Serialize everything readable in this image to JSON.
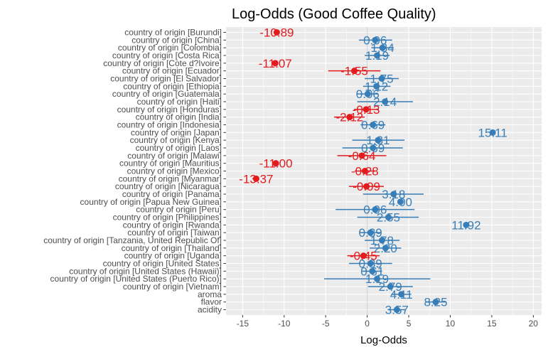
{
  "chart_data": {
    "type": "forest",
    "title": "Log-Odds (Good Coffee Quality)",
    "xlabel": "Log-Odds",
    "xlim": [
      -17,
      21
    ],
    "xticks": [
      -15,
      -10,
      -5,
      0,
      5,
      10,
      15,
      20
    ],
    "grid": true,
    "legend": "none",
    "colors": {
      "positive": "#377eb8",
      "negative": "#e41a1c",
      "panel": "#ebebeb",
      "grid": "#ffffff"
    },
    "terms": [
      {
        "label": "country of origin [Burundi]",
        "estimate": -10.89,
        "lo": null,
        "hi": null,
        "text": "-10.89"
      },
      {
        "label": "country of origin [China]",
        "estimate": 0.96,
        "lo": -1.0,
        "hi": 3.0,
        "text": "0.96"
      },
      {
        "label": "country of origin [Colombia]",
        "estimate": 1.84,
        "lo": 0.5,
        "hi": 3.2,
        "text": "1.84"
      },
      {
        "label": "country of origin [Costa Rica]",
        "estimate": 1.19,
        "lo": -0.3,
        "hi": 2.7,
        "text": "1.19"
      },
      {
        "label": "country of origin [Cote d?Ivoire]",
        "estimate": -11.07,
        "lo": null,
        "hi": null,
        "text": "-11.07"
      },
      {
        "label": "country of origin [Ecuador]",
        "estimate": -1.55,
        "lo": -4.7,
        "hi": 1.6,
        "text": "-1.55"
      },
      {
        "label": "country of origin [El Salvador]",
        "estimate": 1.75,
        "lo": -0.3,
        "hi": 3.8,
        "text": "1.75"
      },
      {
        "label": "country of origin [Ethiopia]",
        "estimate": 1.12,
        "lo": -0.5,
        "hi": 2.8,
        "text": "1.12"
      },
      {
        "label": "country of origin [Guatemala]",
        "estimate": 0.06,
        "lo": -1.2,
        "hi": 1.3,
        "text": "0.06"
      },
      {
        "label": "country of origin [Haiti]",
        "estimate": 2.14,
        "lo": -1.2,
        "hi": 5.5,
        "text": "2.14"
      },
      {
        "label": "country of origin [Honduras]",
        "estimate": -0.13,
        "lo": -1.6,
        "hi": 1.4,
        "text": "-0.13"
      },
      {
        "label": "country of origin [India]",
        "estimate": -2.12,
        "lo": -4.0,
        "hi": -0.3,
        "text": "-2.12"
      },
      {
        "label": "country of origin [Indonesia]",
        "estimate": 0.69,
        "lo": -0.8,
        "hi": 2.2,
        "text": "0.69"
      },
      {
        "label": "country of origin [Japan]",
        "estimate": 15.11,
        "lo": null,
        "hi": null,
        "text": "15.11"
      },
      {
        "label": "country of origin [Kenya]",
        "estimate": 1.31,
        "lo": -1.8,
        "hi": 4.5,
        "text": "1.31"
      },
      {
        "label": "country of origin [Laos]",
        "estimate": 0.69,
        "lo": -3.0,
        "hi": 4.3,
        "text": "0.69"
      },
      {
        "label": "country of origin [Malawi]",
        "estimate": -0.64,
        "lo": -3.6,
        "hi": 2.3,
        "text": "-0.64"
      },
      {
        "label": "country of origin [Mauritius]",
        "estimate": -11.0,
        "lo": null,
        "hi": null,
        "text": "-11.00"
      },
      {
        "label": "country of origin [Mexico]",
        "estimate": -0.28,
        "lo": -1.5,
        "hi": 0.9,
        "text": "-0.28"
      },
      {
        "label": "country of origin [Myanmar]",
        "estimate": -13.37,
        "lo": null,
        "hi": null,
        "text": "-13.37"
      },
      {
        "label": "country of origin [Nicaragua]",
        "estimate": -0.09,
        "lo": -2.2,
        "hi": 2.0,
        "text": "-0.09"
      },
      {
        "label": "country of origin [Panama]",
        "estimate": 3.18,
        "lo": -0.5,
        "hi": 6.8,
        "text": "3.18"
      },
      {
        "label": "country of origin [Papua New Guinea]",
        "estimate": 4.0,
        "lo": null,
        "hi": null,
        "text": "4.00"
      },
      {
        "label": "country of origin [Peru]",
        "estimate": 0.96,
        "lo": -3.8,
        "hi": 5.7,
        "text": "0.96"
      },
      {
        "label": "country of origin [Philippines]",
        "estimate": 2.55,
        "lo": -1.2,
        "hi": 6.2,
        "text": "2.55"
      },
      {
        "label": "country of origin [Rwanda]",
        "estimate": 11.92,
        "lo": null,
        "hi": null,
        "text": "11.92"
      },
      {
        "label": "country of origin [Taiwan]",
        "estimate": 0.39,
        "lo": -0.9,
        "hi": 1.7,
        "text": "0.39"
      },
      {
        "label": "country of origin [Tanzania, United Republic Of]",
        "estimate": 1.78,
        "lo": -0.3,
        "hi": 3.9,
        "text": "1.78"
      },
      {
        "label": "country of origin [Thailand]",
        "estimate": 2.2,
        "lo": 0.3,
        "hi": 4.1,
        "text": "2.20"
      },
      {
        "label": "country of origin [Uganda]",
        "estimate": -0.45,
        "lo": -2.4,
        "hi": 1.5,
        "text": "-0.45"
      },
      {
        "label": "country of origin [United States]",
        "estimate": 0.39,
        "lo": -2.2,
        "hi": 3.0,
        "text": "0.39"
      },
      {
        "label": "country of origin [United States (Hawaii)]",
        "estimate": 0.61,
        "lo": -0.6,
        "hi": 1.8,
        "text": "0.61"
      },
      {
        "label": "country of origin [United States (Puerto Rico)]",
        "estimate": 1.19,
        "lo": -5.2,
        "hi": 7.6,
        "text": "1.19"
      },
      {
        "label": "country of origin [Vietnam]",
        "estimate": 2.79,
        "lo": 0.1,
        "hi": 5.5,
        "text": "2.79"
      },
      {
        "label": "aroma",
        "estimate": 4.11,
        "lo": 2.9,
        "hi": 5.3,
        "text": "4.11"
      },
      {
        "label": "flavor",
        "estimate": 8.25,
        "lo": 7.0,
        "hi": 9.5,
        "text": "8.25"
      },
      {
        "label": "acidity",
        "estimate": 3.57,
        "lo": 2.5,
        "hi": 4.6,
        "text": "3.57"
      }
    ]
  }
}
